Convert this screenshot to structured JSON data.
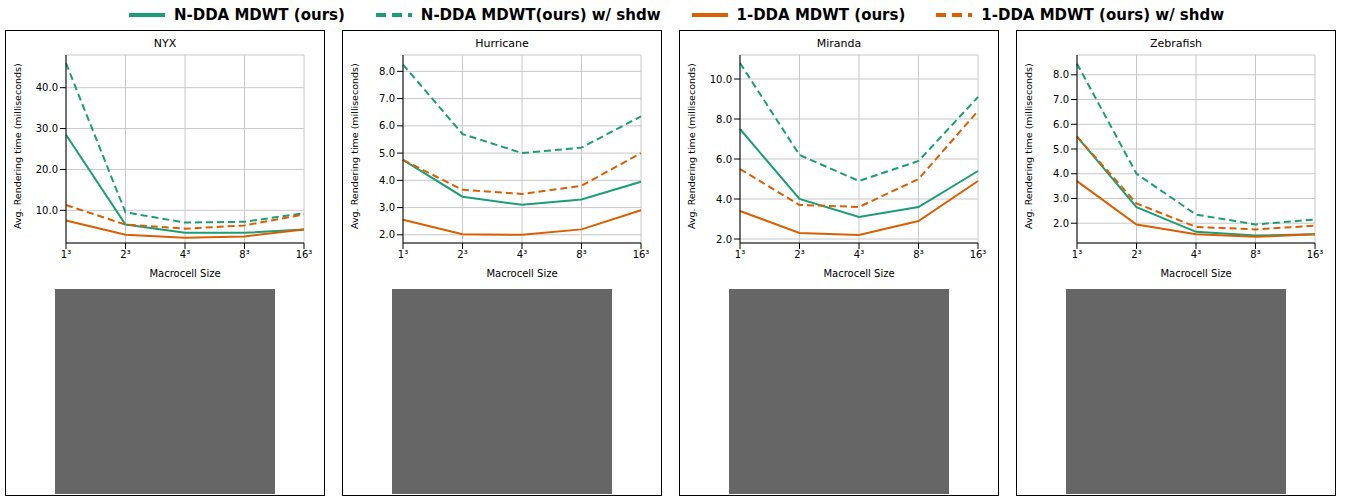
{
  "chart_data": [
    {
      "type": "line",
      "title": "NYX",
      "x_label": "Macrocell Size",
      "y_label": "Avg. Rendering time (milliseconds)",
      "categories": [
        "1³",
        "2³",
        "4³",
        "8³",
        "16³"
      ],
      "ylim": [
        2,
        48
      ],
      "yticks": [
        {
          "value": 10,
          "label": "10.0"
        },
        {
          "value": 20,
          "label": "20.0"
        },
        {
          "value": 30,
          "label": "30.0"
        },
        {
          "value": 40,
          "label": "40.0"
        }
      ],
      "grid": true,
      "legend": "top",
      "series": [
        {
          "name": "N-DDA MDWT (ours)",
          "color": "#1b9e77",
          "line_style": "solid",
          "values": [
            28.5,
            6.5,
            4.5,
            4.5,
            5.3
          ]
        },
        {
          "name": "N-DDA MDWT(ours) w/ shdw",
          "color": "#1b9e77",
          "line_style": "dashed",
          "values": [
            46,
            9.5,
            7,
            7.2,
            9.3
          ]
        },
        {
          "name": "1-DDA MDWT (ours)",
          "color": "#d95f02",
          "line_style": "solid",
          "values": [
            7.5,
            4,
            3.3,
            3.6,
            5.3
          ]
        },
        {
          "name": "1-DDA MDWT (ours) w/ shdw",
          "color": "#d95f02",
          "line_style": "dashed",
          "values": [
            11.3,
            6.5,
            5.5,
            6.3,
            9
          ]
        }
      ]
    },
    {
      "type": "line",
      "title": "Hurricane",
      "x_label": "Macrocell Size",
      "y_label": "Avg. Rendering time (milliseconds)",
      "categories": [
        "1³",
        "2³",
        "4³",
        "8³",
        "16³"
      ],
      "ylim": [
        1.7,
        8.6
      ],
      "yticks": [
        {
          "value": 2,
          "label": "2.0"
        },
        {
          "value": 3,
          "label": "3.0"
        },
        {
          "value": 4,
          "label": "4.0"
        },
        {
          "value": 5,
          "label": "5.0"
        },
        {
          "value": 6,
          "label": "6.0"
        },
        {
          "value": 7,
          "label": "7.0"
        },
        {
          "value": 8,
          "label": "8.0"
        }
      ],
      "grid": true,
      "legend": "top",
      "series": [
        {
          "name": "N-DDA MDWT (ours)",
          "color": "#1b9e77",
          "line_style": "solid",
          "values": [
            4.75,
            3.4,
            3.1,
            3.3,
            3.95
          ]
        },
        {
          "name": "N-DDA MDWT(ours) w/ shdw",
          "color": "#1b9e77",
          "line_style": "dashed",
          "values": [
            8.25,
            5.7,
            5.0,
            5.2,
            6.35
          ]
        },
        {
          "name": "1-DDA MDWT (ours)",
          "color": "#d95f02",
          "line_style": "solid",
          "values": [
            2.55,
            2.02,
            2.0,
            2.2,
            2.9
          ]
        },
        {
          "name": "1-DDA MDWT (ours) w/ shdw",
          "color": "#d95f02",
          "line_style": "dashed",
          "values": [
            4.75,
            3.65,
            3.5,
            3.8,
            5.0
          ]
        }
      ]
    },
    {
      "type": "line",
      "title": "Miranda",
      "x_label": "Macrocell Size",
      "y_label": "Avg. Rendering time (milliseconds)",
      "categories": [
        "1³",
        "2³",
        "4³",
        "8³",
        "16³"
      ],
      "ylim": [
        1.8,
        11.2
      ],
      "yticks": [
        {
          "value": 2,
          "label": "2.0"
        },
        {
          "value": 4,
          "label": "4.0"
        },
        {
          "value": 6,
          "label": "6.0"
        },
        {
          "value": 8,
          "label": "8.0"
        },
        {
          "value": 10,
          "label": "10.0"
        }
      ],
      "grid": true,
      "legend": "top",
      "series": [
        {
          "name": "N-DDA MDWT (ours)",
          "color": "#1b9e77",
          "line_style": "solid",
          "values": [
            7.5,
            4.0,
            3.1,
            3.6,
            5.4
          ]
        },
        {
          "name": "N-DDA MDWT(ours) w/ shdw",
          "color": "#1b9e77",
          "line_style": "dashed",
          "values": [
            10.8,
            6.2,
            4.9,
            5.9,
            9.1
          ]
        },
        {
          "name": "1-DDA MDWT (ours)",
          "color": "#d95f02",
          "line_style": "solid",
          "values": [
            3.4,
            2.3,
            2.2,
            2.9,
            4.9
          ]
        },
        {
          "name": "1-DDA MDWT (ours) w/ shdw",
          "color": "#d95f02",
          "line_style": "dashed",
          "values": [
            5.5,
            3.7,
            3.6,
            5.0,
            8.4
          ]
        }
      ]
    },
    {
      "type": "line",
      "title": "Zebrafish",
      "x_label": "Macrocell Size",
      "y_label": "Avg. Rendering time (milliseconds)",
      "categories": [
        "1³",
        "2³",
        "4³",
        "8³",
        "16³"
      ],
      "ylim": [
        1.2,
        8.8
      ],
      "yticks": [
        {
          "value": 2,
          "label": "2.0"
        },
        {
          "value": 3,
          "label": "3.0"
        },
        {
          "value": 4,
          "label": "4.0"
        },
        {
          "value": 5,
          "label": "5.0"
        },
        {
          "value": 6,
          "label": "6.0"
        },
        {
          "value": 7,
          "label": "7.0"
        },
        {
          "value": 8,
          "label": "8.0"
        }
      ],
      "grid": true,
      "legend": "top",
      "series": [
        {
          "name": "N-DDA MDWT (ours)",
          "color": "#1b9e77",
          "line_style": "solid",
          "values": [
            5.5,
            2.65,
            1.65,
            1.5,
            1.55
          ]
        },
        {
          "name": "N-DDA MDWT(ours) w/ shdw",
          "color": "#1b9e77",
          "line_style": "dashed",
          "values": [
            8.45,
            4.0,
            2.35,
            1.95,
            2.15
          ]
        },
        {
          "name": "1-DDA MDWT (ours)",
          "color": "#d95f02",
          "line_style": "solid",
          "values": [
            3.7,
            1.95,
            1.55,
            1.45,
            1.55
          ]
        },
        {
          "name": "1-DDA MDWT (ours) w/ shdw",
          "color": "#d95f02",
          "line_style": "dashed",
          "values": [
            5.5,
            2.8,
            1.85,
            1.75,
            1.9
          ]
        }
      ]
    }
  ]
}
